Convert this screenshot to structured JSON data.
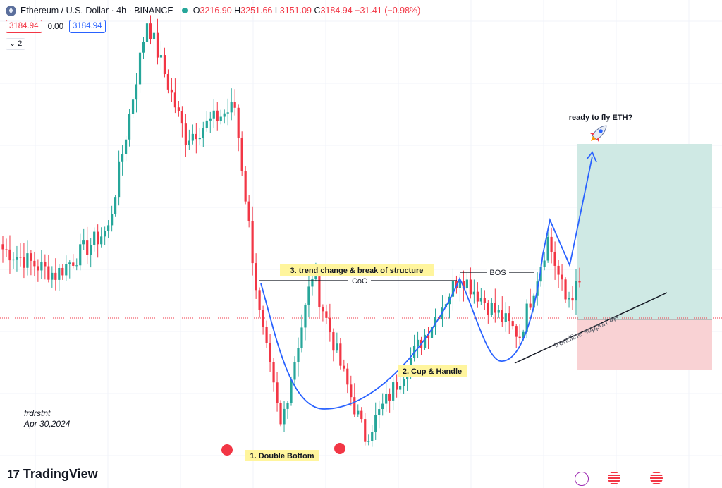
{
  "header": {
    "symbol": "Ethereum / U.S. Dollar · 4h · BINANCE",
    "o_label": "O",
    "o_value": "3216.90",
    "h_label": "H",
    "h_value": "3251.66",
    "l_label": "L",
    "l_value": "3151.09",
    "c_label": "C",
    "c_value": "3184.94",
    "change": "−31.41 (−0.98%)",
    "bid": "3184.94",
    "spread": "0.00",
    "ask": "3184.94",
    "indicator_toggle": "2"
  },
  "branding": {
    "name": "TradingView"
  },
  "colors": {
    "up": "#26a69a",
    "down": "#f23645",
    "projection": "#2962ff",
    "target_zone": "#cfe9e4",
    "stop_zone": "#f9d2d4",
    "label_bg": "#fff59d"
  },
  "annotations": {
    "coc": "CoC",
    "bos": "BOS",
    "trend_change": "3. trend change & break of structure",
    "cup_handle": "2. Cup & Handle",
    "double_bottom": "1. Double Bottom",
    "trendline": "trendline support 4H",
    "ready": "ready to fly ETH?",
    "author": "frdrstnt",
    "date": "Apr 30,2024"
  },
  "chart_data": {
    "type": "candlestick",
    "symbol": "ETHUSD",
    "exchange": "BINANCE",
    "timeframe": "4h",
    "current_price": 3184.94,
    "grid": true,
    "y_range": [
      2780,
      3740
    ],
    "bar_count": 178,
    "segments": [
      {
        "from": 0,
        "to": 15,
        "start": 3250,
        "end": 3200
      },
      {
        "from": 15,
        "to": 30,
        "start": 3200,
        "end": 3290
      },
      {
        "from": 30,
        "to": 41,
        "start": 3290,
        "end": 3700
      },
      {
        "from": 41,
        "to": 52,
        "start": 3700,
        "end": 3470
      },
      {
        "from": 52,
        "to": 66,
        "start": 3470,
        "end": 3530
      },
      {
        "from": 66,
        "to": 73,
        "start": 3530,
        "end": 3120
      },
      {
        "from": 73,
        "to": 79,
        "start": 3120,
        "end": 2900
      },
      {
        "from": 79,
        "to": 88,
        "start": 2900,
        "end": 3200
      },
      {
        "from": 88,
        "to": 97,
        "start": 3200,
        "end": 3000
      },
      {
        "from": 97,
        "to": 103,
        "start": 3000,
        "end": 2880
      },
      {
        "from": 103,
        "to": 130,
        "start": 2880,
        "end": 3200
      },
      {
        "from": 130,
        "to": 138,
        "start": 3200,
        "end": 3140
      },
      {
        "from": 138,
        "to": 147,
        "start": 3140,
        "end": 3080
      },
      {
        "from": 147,
        "to": 155,
        "start": 3080,
        "end": 3270
      },
      {
        "from": 155,
        "to": 160,
        "start": 3270,
        "end": 3150
      },
      {
        "from": 160,
        "to": 165,
        "start": 3150,
        "end": 3185
      }
    ]
  }
}
